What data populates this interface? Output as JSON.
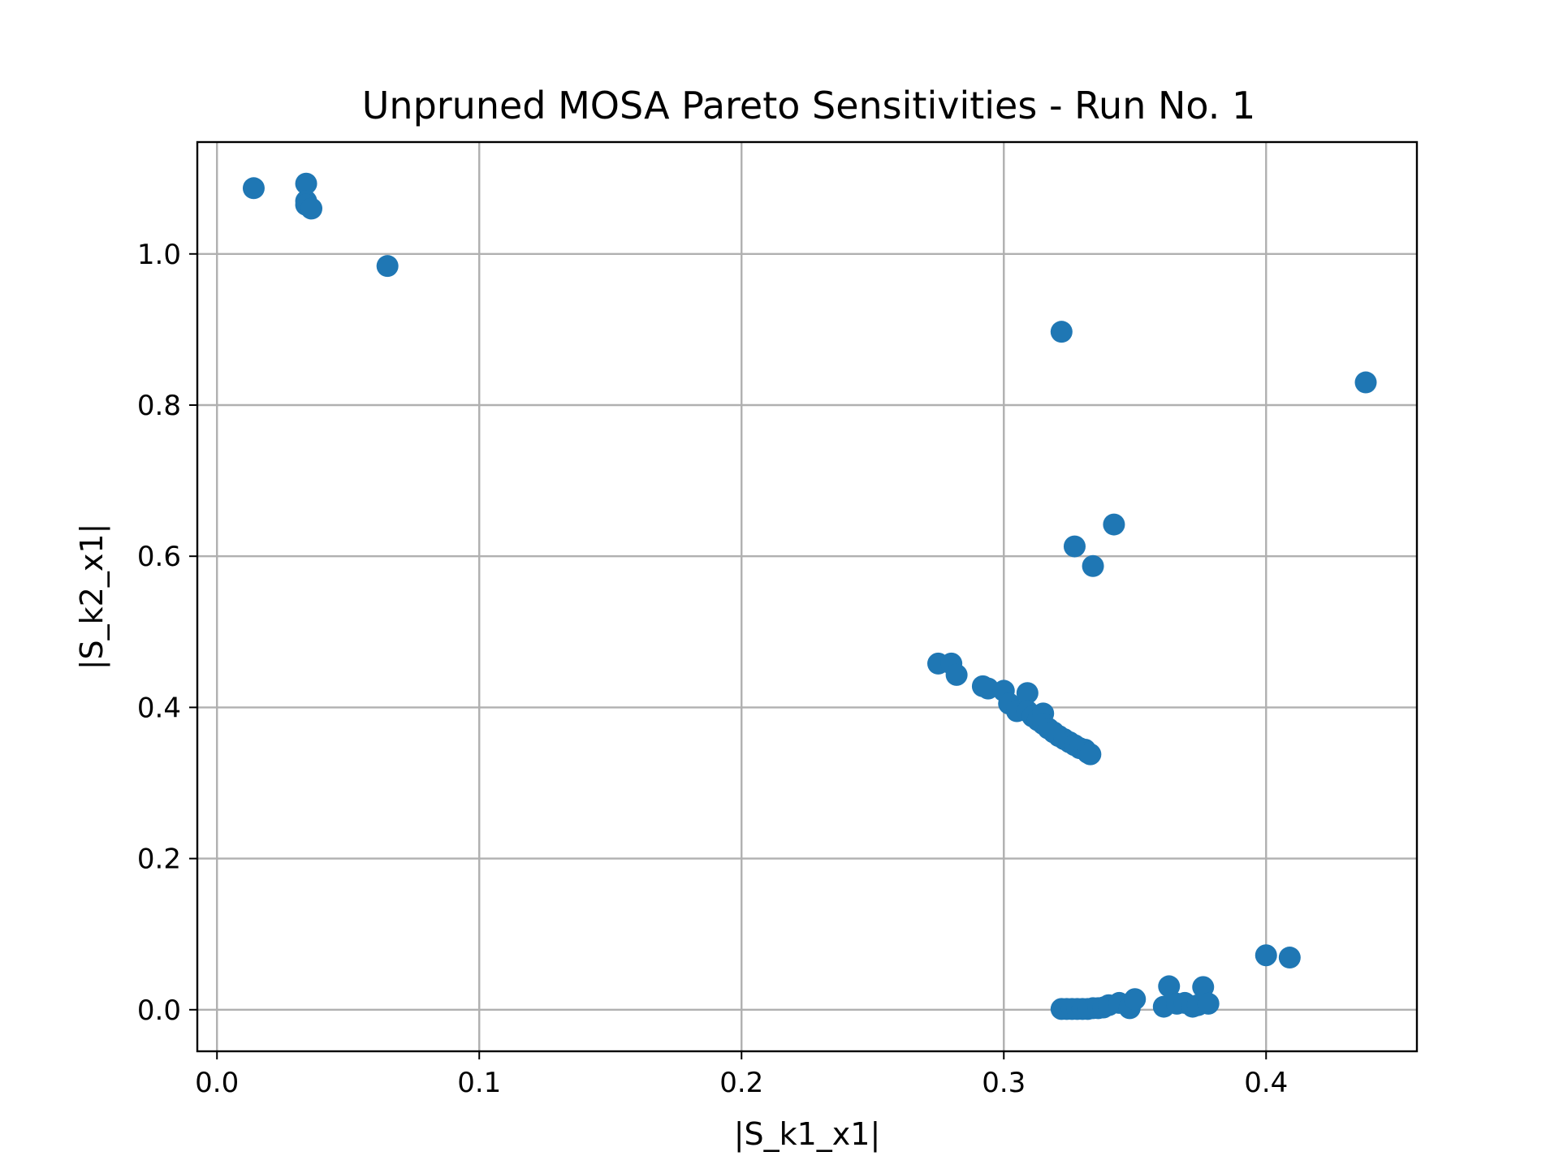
{
  "chart_data": {
    "type": "scatter",
    "title": "Unpruned MOSA Pareto Sensitivities - Run No. 1",
    "xlabel": "|S_k1_x1|",
    "ylabel": "|S_k2_x1|",
    "xlim": [
      -0.0075,
      0.4575
    ],
    "ylim": [
      -0.055,
      1.148
    ],
    "xticks": [
      0.0,
      0.1,
      0.2,
      0.3,
      0.4
    ],
    "xtick_labels": [
      "0.0",
      "0.1",
      "0.2",
      "0.3",
      "0.4"
    ],
    "yticks": [
      0.0,
      0.2,
      0.4,
      0.6,
      0.8,
      1.0
    ],
    "ytick_labels": [
      "0.0",
      "0.2",
      "0.4",
      "0.6",
      "0.8",
      "1.0"
    ],
    "grid": true,
    "marker_color": "#1f77b4",
    "points": [
      [
        0.014,
        1.087
      ],
      [
        0.034,
        1.093
      ],
      [
        0.034,
        1.07
      ],
      [
        0.034,
        1.065
      ],
      [
        0.036,
        1.06
      ],
      [
        0.065,
        0.984
      ],
      [
        0.322,
        0.897
      ],
      [
        0.438,
        0.83
      ],
      [
        0.342,
        0.642
      ],
      [
        0.327,
        0.613
      ],
      [
        0.334,
        0.587
      ],
      [
        0.275,
        0.458
      ],
      [
        0.28,
        0.458
      ],
      [
        0.282,
        0.443
      ],
      [
        0.292,
        0.428
      ],
      [
        0.294,
        0.425
      ],
      [
        0.3,
        0.422
      ],
      [
        0.302,
        0.405
      ],
      [
        0.305,
        0.395
      ],
      [
        0.309,
        0.419
      ],
      [
        0.309,
        0.395
      ],
      [
        0.311,
        0.388
      ],
      [
        0.313,
        0.383
      ],
      [
        0.315,
        0.392
      ],
      [
        0.315,
        0.378
      ],
      [
        0.317,
        0.372
      ],
      [
        0.319,
        0.367
      ],
      [
        0.321,
        0.362
      ],
      [
        0.323,
        0.358
      ],
      [
        0.325,
        0.354
      ],
      [
        0.327,
        0.35
      ],
      [
        0.329,
        0.346
      ],
      [
        0.331,
        0.344
      ],
      [
        0.332,
        0.34
      ],
      [
        0.333,
        0.338
      ],
      [
        0.322,
        0.001
      ],
      [
        0.324,
        0.001
      ],
      [
        0.326,
        0.001
      ],
      [
        0.328,
        0.001
      ],
      [
        0.33,
        0.001
      ],
      [
        0.332,
        0.001
      ],
      [
        0.334,
        0.002
      ],
      [
        0.336,
        0.002
      ],
      [
        0.338,
        0.003
      ],
      [
        0.34,
        0.006
      ],
      [
        0.344,
        0.009
      ],
      [
        0.348,
        0.002
      ],
      [
        0.35,
        0.014
      ],
      [
        0.361,
        0.004
      ],
      [
        0.363,
        0.031
      ],
      [
        0.366,
        0.008
      ],
      [
        0.369,
        0.009
      ],
      [
        0.372,
        0.004
      ],
      [
        0.374,
        0.006
      ],
      [
        0.376,
        0.03
      ],
      [
        0.378,
        0.008
      ],
      [
        0.4,
        0.072
      ],
      [
        0.409,
        0.069
      ]
    ]
  }
}
